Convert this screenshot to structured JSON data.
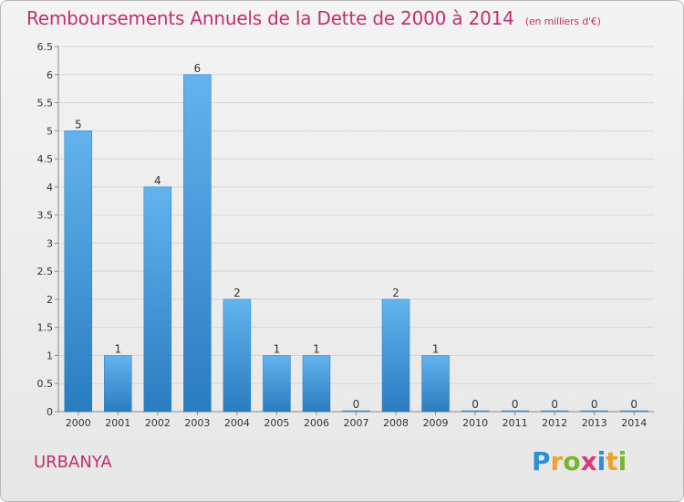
{
  "header": {
    "title": "Remboursements Annuels de la Dette de 2000 à 2014",
    "unit": "(en milliers d'€)"
  },
  "footer": {
    "location": "URBANYA",
    "logo_text": "Proxiti",
    "logo_letters": [
      {
        "char": "P",
        "color": "#2e8fd6"
      },
      {
        "char": "r",
        "color": "#f0a12a"
      },
      {
        "char": "o",
        "color": "#7ab62b"
      },
      {
        "char": "x",
        "color": "#e0387c"
      },
      {
        "char": "i",
        "color": "#2e8fd6"
      },
      {
        "char": "t",
        "color": "#f0a12a"
      },
      {
        "char": "i",
        "color": "#7ab62b"
      }
    ]
  },
  "colors": {
    "accent": "#c0306f",
    "bar_light": "#62b3ee",
    "bar_dark": "#2a7cc0"
  },
  "chart_data": {
    "type": "bar",
    "categories": [
      "2000",
      "2001",
      "2002",
      "2003",
      "2004",
      "2005",
      "2006",
      "2007",
      "2008",
      "2009",
      "2010",
      "2011",
      "2012",
      "2013",
      "2014"
    ],
    "values": [
      5,
      1,
      4,
      6,
      2,
      1,
      1,
      0,
      2,
      1,
      0,
      0,
      0,
      0,
      0
    ],
    "value_labels": [
      "5",
      "1",
      "4",
      "6",
      "2",
      "1",
      "1",
      "0",
      "2",
      "1",
      "0",
      "0",
      "0",
      "0",
      "0"
    ],
    "y_ticks": [
      0,
      0.5,
      1,
      1.5,
      2,
      2.5,
      3,
      3.5,
      4,
      4.5,
      5,
      5.5,
      6,
      6.5
    ],
    "y_tick_labels": [
      "0",
      "0.5",
      "1",
      "1.5",
      "2",
      "2.5",
      "3",
      "3.5",
      "4",
      "4.5",
      "5",
      "5.5",
      "6",
      "6.5"
    ],
    "ylim": [
      0,
      6.5
    ],
    "grid": true,
    "title": "Remboursements Annuels de la Dette de 2000 à 2014",
    "xlabel": "",
    "ylabel": ""
  }
}
